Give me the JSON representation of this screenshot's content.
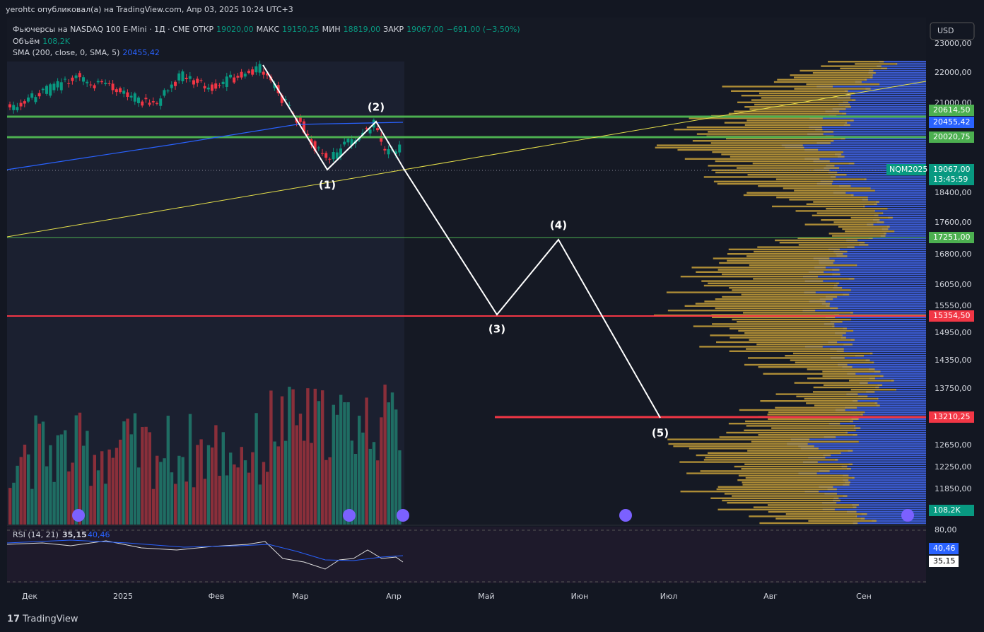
{
  "header": {
    "publisher": "yerohtc опубликовал(а) на TradingView.com, Апр 03, 2025 10:24 UTC+3"
  },
  "legend": {
    "symbol": "Фьючерсы на NASDAQ 100 E-Mini · 1Д · CME",
    "open_label": "ОТКР",
    "open": "19020,00",
    "high_label": "МАКС",
    "high": "19150,25",
    "low_label": "МИН",
    "low": "18819,00",
    "close_label": "ЗАКР",
    "close": "19067,00",
    "change": "−691,00 (−3,50%)",
    "volume_label": "Объём",
    "volume": "108,2K",
    "sma_label": "SMA (200, close, 0, SMA, 5)",
    "sma": "20455,42"
  },
  "currency": "USD",
  "price_axis": [
    "23000,00",
    "22000,00",
    "21000,00",
    "18400,00",
    "17600,00",
    "16800,00",
    "16050,00",
    "15550,00",
    "14950,00",
    "14350,00",
    "13750,00",
    "12650,00",
    "12250,00",
    "11850,00"
  ],
  "badges": [
    {
      "text": "20614,50",
      "color": "#4caf50"
    },
    {
      "text": "20455,42",
      "color": "#2962ff"
    },
    {
      "text": "20020,75",
      "color": "#4caf50"
    },
    {
      "text": "17251,00",
      "color": "#4caf50"
    },
    {
      "text": "15354,50",
      "color": "#f23645"
    },
    {
      "text": "13210,25",
      "color": "#f23645"
    },
    {
      "text": "108,2K",
      "color": "#089981"
    }
  ],
  "last_price": {
    "ticker": "NQM2025",
    "price": "19067,00",
    "countdown": "13:45:59"
  },
  "waves": [
    "(1)",
    "(2)",
    "(3)",
    "(4)",
    "(5)"
  ],
  "rsi": {
    "label": "RSI (14, 21)",
    "value": "35,15",
    "ma": "40,46",
    "axis": [
      "80,00"
    ]
  },
  "time_axis": [
    "Дек",
    "2025",
    "Фев",
    "Мар",
    "Апр",
    "Май",
    "Июн",
    "Июл",
    "Авг",
    "Сен"
  ],
  "brand": "TradingView"
}
